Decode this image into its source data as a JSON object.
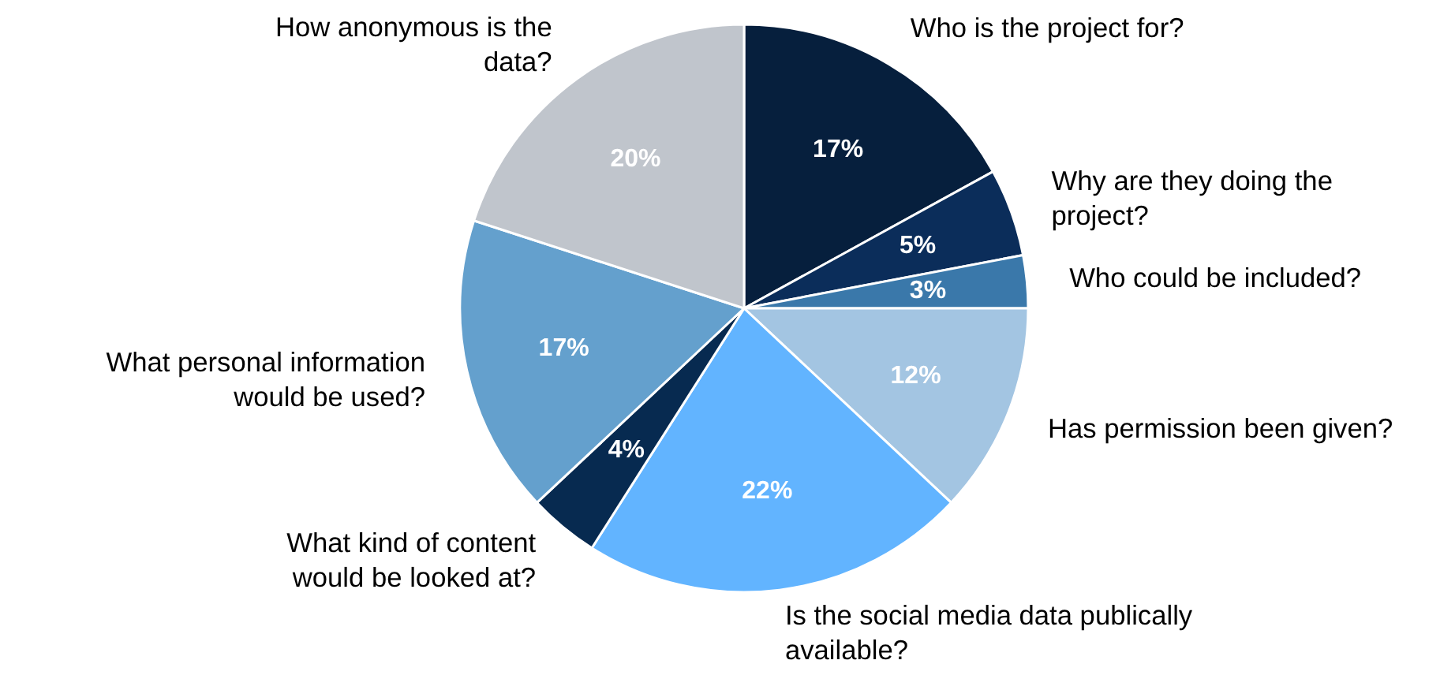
{
  "chart_data": {
    "type": "pie",
    "categories": [
      "Who is the project for?",
      "Why are they doing the\nproject?",
      "Who could be included?",
      "Has permission been given?",
      "Is the social media data publically\navailable?",
      "What kind of content\nwould be looked at?",
      "What personal information\nwould be used?",
      "How anonymous is the\ndata?"
    ],
    "values": [
      17,
      5,
      3,
      12,
      22,
      4,
      17,
      20
    ],
    "value_labels": [
      "17%",
      "5%",
      "3%",
      "12%",
      "22%",
      "4%",
      "17%",
      "20%"
    ],
    "colors": [
      "#061f3d",
      "#0b2d5a",
      "#3a78aa",
      "#a3c5e2",
      "#62b4ff",
      "#072a50",
      "#64a0cd",
      "#c0c5cc"
    ]
  }
}
